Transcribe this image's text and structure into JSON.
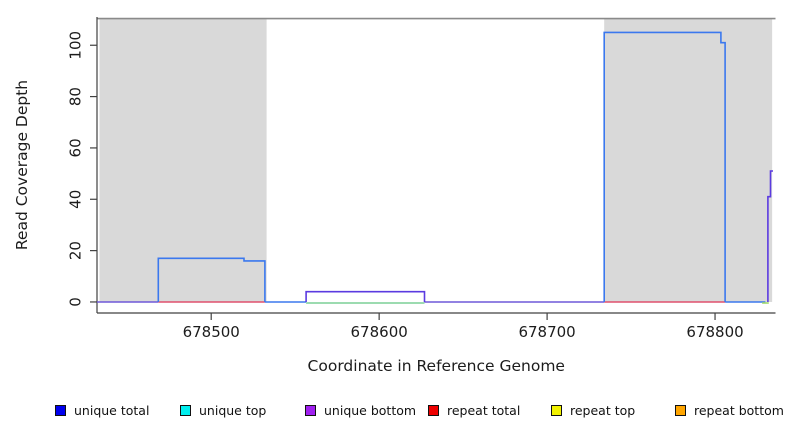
{
  "chart_data": {
    "type": "line",
    "subtype": "step-coverage",
    "title": "",
    "xlabel": "Coordinate in Reference Genome",
    "ylabel": "Read Coverage Depth",
    "x_ticks": [
      678500,
      678600,
      678700,
      678800
    ],
    "y_ticks": [
      0,
      20,
      40,
      60,
      80,
      100
    ],
    "xlim": [
      678432,
      678836
    ],
    "ylim": [
      -4.3,
      111
    ],
    "grid": false,
    "shaded_regions": [
      {
        "name": "repeat-region-left",
        "x0": 678433.5,
        "x1": 678533,
        "y0": 0,
        "y1": 110.2,
        "color": "#d9d9d9"
      },
      {
        "name": "repeat-region-right",
        "x0": 678734,
        "x1": 678834,
        "y0": 0,
        "y1": 110.2,
        "color": "#d9d9d9"
      }
    ],
    "top_line": {
      "y": 110.4,
      "color": "#8a8a8a"
    },
    "series": [
      {
        "name": "baseline-unique-bottom-a",
        "color": "#6f58d8",
        "points": [
          [
            678432,
            0
          ],
          [
            678468.5,
            0
          ]
        ]
      },
      {
        "name": "baseline-unique-total-a",
        "color": "#3b78ee",
        "points": [
          [
            678532,
            0
          ],
          [
            678556.5,
            0
          ]
        ]
      },
      {
        "name": "baseline-unique-bottom-b",
        "color": "#6f58d8",
        "points": [
          [
            678627,
            0
          ],
          [
            678734,
            0
          ]
        ]
      },
      {
        "name": "baseline-unique-total-b",
        "color": "#3b78ee",
        "points": [
          [
            678806,
            0
          ],
          [
            678830,
            0
          ]
        ]
      },
      {
        "name": "baseline-repeat-total-a",
        "color": "#e0506e",
        "points": [
          [
            678468.5,
            0
          ],
          [
            678532,
            0
          ]
        ]
      },
      {
        "name": "baseline-repeat-total-b",
        "color": "#e0506e",
        "points": [
          [
            678734,
            0
          ],
          [
            678806,
            0
          ]
        ]
      },
      {
        "name": "baseline-green-a",
        "color": "#7ccf96",
        "points": [
          [
            678556.5,
            -0.4
          ],
          [
            678627,
            -0.4
          ]
        ]
      },
      {
        "name": "baseline-green-b",
        "color": "#9fd86a",
        "points": [
          [
            678828,
            -0.4
          ],
          [
            678832,
            -0.4
          ]
        ]
      },
      {
        "name": "unique-total-left-block",
        "color": "#3b78ee",
        "points": [
          [
            678468.5,
            0
          ],
          [
            678468.5,
            17
          ],
          [
            678519.5,
            17
          ],
          [
            678519.5,
            16
          ],
          [
            678532,
            16
          ],
          [
            678532,
            0
          ]
        ]
      },
      {
        "name": "unique-bottom-mid-block",
        "color": "#5b3be0",
        "points": [
          [
            678556.5,
            0
          ],
          [
            678556.5,
            4
          ],
          [
            678627,
            4
          ],
          [
            678627,
            0
          ]
        ]
      },
      {
        "name": "unique-total-right-block",
        "color": "#3b78ee",
        "points": [
          [
            678734,
            0
          ],
          [
            678734,
            105
          ],
          [
            678803.5,
            105
          ],
          [
            678803.5,
            101
          ],
          [
            678806,
            101
          ],
          [
            678806,
            0
          ]
        ]
      },
      {
        "name": "unique-bottom-right-spike",
        "color": "#5b3be0",
        "points": [
          [
            678831.5,
            0
          ],
          [
            678831.5,
            41
          ],
          [
            678833,
            41
          ],
          [
            678833,
            51
          ],
          [
            678834.5,
            51
          ]
        ]
      }
    ],
    "legend_position": "bottom"
  },
  "legend": {
    "items": [
      {
        "label": "unique total",
        "color": "#0000ee"
      },
      {
        "label": "unique top",
        "color": "#00eeee"
      },
      {
        "label": "unique bottom",
        "color": "#a020f0"
      },
      {
        "label": "repeat total",
        "color": "#ee0000"
      },
      {
        "label": "repeat top",
        "color": "#f2f200"
      },
      {
        "label": "repeat bottom",
        "color": "#ffa500"
      }
    ]
  },
  "colors": {
    "axis": "#404040",
    "text": "#1c1c1c",
    "background": "#ffffff"
  }
}
